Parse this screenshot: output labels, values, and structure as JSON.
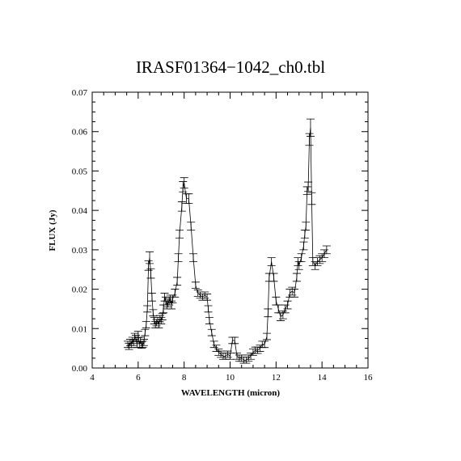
{
  "chart_data": {
    "type": "errorbar-line",
    "title": "IRASF01364−1042_ch0.tbl",
    "xlabel": "WAVELENGTH (micron)",
    "ylabel": "FLUX (Jy)",
    "color": "#000000",
    "x": [
      5.55,
      5.6,
      5.65,
      5.7,
      5.75,
      5.8,
      5.85,
      5.9,
      5.95,
      6.0,
      6.05,
      6.1,
      6.15,
      6.2,
      6.25,
      6.3,
      6.35,
      6.4,
      6.45,
      6.5,
      6.55,
      6.6,
      6.65,
      6.7,
      6.75,
      6.8,
      6.85,
      6.9,
      6.95,
      7.0,
      7.05,
      7.1,
      7.15,
      7.2,
      7.25,
      7.3,
      7.35,
      7.4,
      7.45,
      7.5,
      7.6,
      7.7,
      7.75,
      7.8,
      7.9,
      7.95,
      8.0,
      8.1,
      8.2,
      8.3,
      8.4,
      8.5,
      8.6,
      8.7,
      8.8,
      8.9,
      9.0,
      9.05,
      9.1,
      9.2,
      9.3,
      9.4,
      9.5,
      9.6,
      9.7,
      9.8,
      9.9,
      10.0,
      10.1,
      10.2,
      10.3,
      10.4,
      10.5,
      10.6,
      10.7,
      10.8,
      10.9,
      11.0,
      11.1,
      11.2,
      11.3,
      11.4,
      11.5,
      11.6,
      11.65,
      11.7,
      11.8,
      11.9,
      12.0,
      12.1,
      12.2,
      12.3,
      12.4,
      12.5,
      12.6,
      12.7,
      12.8,
      12.9,
      12.95,
      13.0,
      13.1,
      13.2,
      13.25,
      13.3,
      13.35,
      13.4,
      13.45,
      13.5,
      13.55,
      13.6,
      13.7,
      13.8,
      13.9,
      14.0,
      14.1,
      14.2
    ],
    "values": [
      0.006,
      0.0055,
      0.0065,
      0.006,
      0.007,
      0.0065,
      0.008,
      0.0075,
      0.006,
      0.0085,
      0.006,
      0.007,
      0.0058,
      0.006,
      0.0065,
      0.009,
      0.011,
      0.015,
      0.026,
      0.028,
      0.024,
      0.018,
      0.014,
      0.012,
      0.011,
      0.0115,
      0.012,
      0.011,
      0.0125,
      0.012,
      0.013,
      0.015,
      0.018,
      0.017,
      0.016,
      0.0165,
      0.017,
      0.0175,
      0.016,
      0.0175,
      0.019,
      0.022,
      0.028,
      0.034,
      0.041,
      0.046,
      0.047,
      0.043,
      0.043,
      0.036,
      0.028,
      0.021,
      0.019,
      0.0185,
      0.018,
      0.0185,
      0.018,
      0.015,
      0.012,
      0.009,
      0.006,
      0.005,
      0.004,
      0.0035,
      0.003,
      0.003,
      0.0035,
      0.003,
      0.007,
      0.007,
      0.003,
      0.0025,
      0.0025,
      0.002,
      0.002,
      0.0025,
      0.003,
      0.004,
      0.0045,
      0.0045,
      0.005,
      0.006,
      0.006,
      0.008,
      0.014,
      0.023,
      0.027,
      0.023,
      0.017,
      0.015,
      0.013,
      0.0135,
      0.015,
      0.016,
      0.019,
      0.0195,
      0.019,
      0.023,
      0.027,
      0.026,
      0.028,
      0.031,
      0.034,
      0.036,
      0.045,
      0.046,
      0.058,
      0.061,
      0.043,
      0.027,
      0.026,
      0.027,
      0.0275,
      0.028,
      0.029,
      0.03
    ],
    "errors": [
      0.0008,
      0.0008,
      0.0008,
      0.0008,
      0.0008,
      0.0008,
      0.0008,
      0.0008,
      0.0008,
      0.0008,
      0.0008,
      0.0008,
      0.0008,
      0.0008,
      0.0008,
      0.0008,
      0.0008,
      0.0008,
      0.0012,
      0.0015,
      0.0012,
      0.001,
      0.0008,
      0.0008,
      0.0008,
      0.0008,
      0.0008,
      0.0008,
      0.0008,
      0.0008,
      0.0008,
      0.001,
      0.001,
      0.001,
      0.001,
      0.001,
      0.001,
      0.001,
      0.001,
      0.001,
      0.001,
      0.001,
      0.001,
      0.001,
      0.0012,
      0.0013,
      0.0013,
      0.0012,
      0.0012,
      0.001,
      0.001,
      0.0008,
      0.0008,
      0.0008,
      0.0008,
      0.0008,
      0.0008,
      0.0008,
      0.0008,
      0.0008,
      0.0008,
      0.0008,
      0.0008,
      0.0008,
      0.0008,
      0.0008,
      0.0008,
      0.0008,
      0.0008,
      0.0008,
      0.0008,
      0.0008,
      0.0008,
      0.0008,
      0.0008,
      0.0008,
      0.0008,
      0.0008,
      0.0008,
      0.0008,
      0.0008,
      0.0008,
      0.0008,
      0.0008,
      0.001,
      0.001,
      0.001,
      0.001,
      0.001,
      0.001,
      0.001,
      0.001,
      0.001,
      0.001,
      0.001,
      0.001,
      0.001,
      0.001,
      0.001,
      0.001,
      0.001,
      0.001,
      0.001,
      0.001,
      0.001,
      0.0012,
      0.0015,
      0.0022,
      0.0015,
      0.001,
      0.001,
      0.001,
      0.001,
      0.001,
      0.001,
      0.001
    ],
    "xlim": [
      4,
      16
    ],
    "xticks": [
      4,
      6,
      8,
      10,
      12,
      14,
      16
    ],
    "ylim": [
      0,
      0.07
    ],
    "yticks": [
      {
        "value": 0,
        "label": "0.00"
      },
      {
        "value": 0.01,
        "label": "0.01"
      },
      {
        "value": 0.02,
        "label": "0.02"
      },
      {
        "value": 0.03,
        "label": "0.03"
      },
      {
        "value": 0.04,
        "label": "0.04"
      },
      {
        "value": 0.05,
        "label": "0.05"
      },
      {
        "value": 0.06,
        "label": "0.06"
      },
      {
        "value": 0.07,
        "label": "0.07"
      }
    ]
  }
}
